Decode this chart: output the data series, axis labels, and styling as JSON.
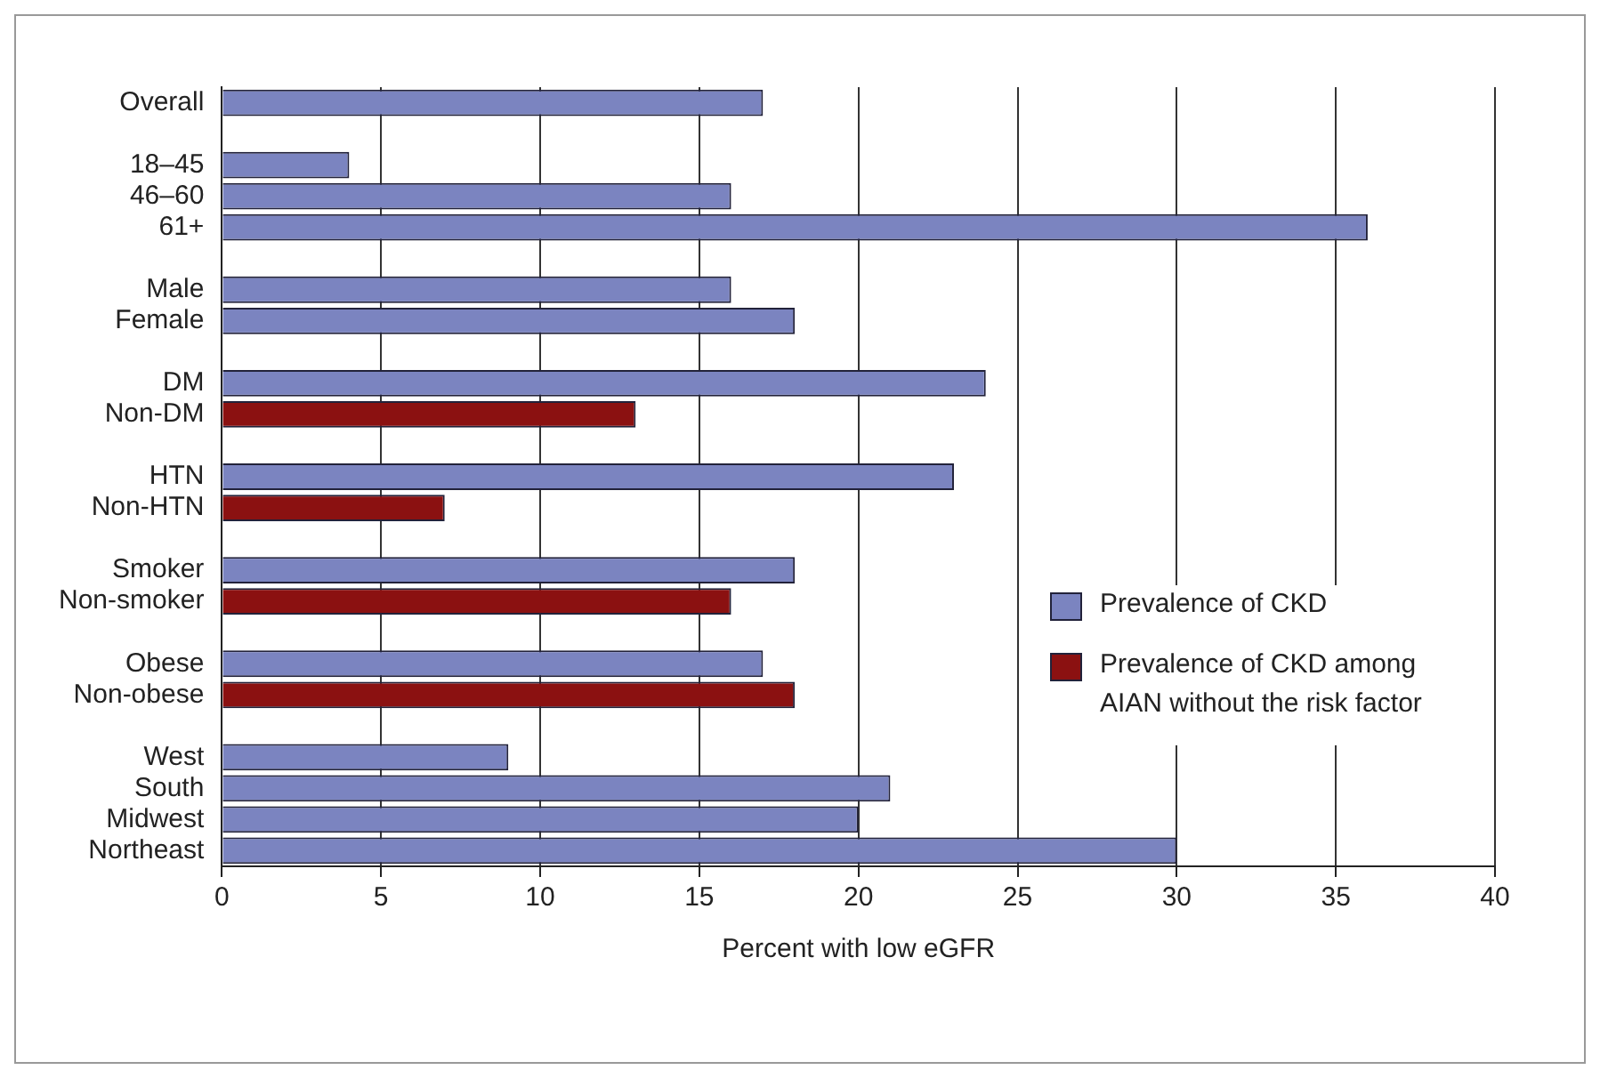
{
  "chart_data": {
    "type": "bar",
    "orientation": "horizontal",
    "xlabel": "Percent with low eGFR",
    "categories": [
      "Overall",
      null,
      "18–45",
      "46–60",
      "61+",
      null,
      "Male",
      "Female",
      null,
      "DM",
      "Non-DM",
      null,
      "HTN",
      "Non-HTN",
      null,
      "Smoker",
      "Non-smoker",
      null,
      "Obese",
      "Non-obese",
      null,
      "West",
      "South",
      "Midwest",
      "Northeast"
    ],
    "series": [
      {
        "name": "Prevalence of CKD",
        "color": "#7b84c0",
        "values": [
          17,
          null,
          4,
          16,
          36,
          null,
          16,
          18,
          null,
          24,
          null,
          null,
          23,
          null,
          null,
          18,
          null,
          null,
          17,
          null,
          null,
          9,
          21,
          20,
          30
        ]
      },
      {
        "name": "Prevalence of CKD among AIAN without the risk factor",
        "color": "#8b1111",
        "values": [
          null,
          null,
          null,
          null,
          null,
          null,
          null,
          null,
          null,
          null,
          13,
          null,
          null,
          7,
          null,
          null,
          16,
          null,
          null,
          18,
          null,
          null,
          null,
          null,
          null
        ]
      }
    ],
    "xlim": [
      0,
      40
    ],
    "xticks": [
      0,
      5,
      10,
      15,
      20,
      25,
      30,
      35,
      40
    ],
    "grid": "x",
    "legend": "right"
  }
}
